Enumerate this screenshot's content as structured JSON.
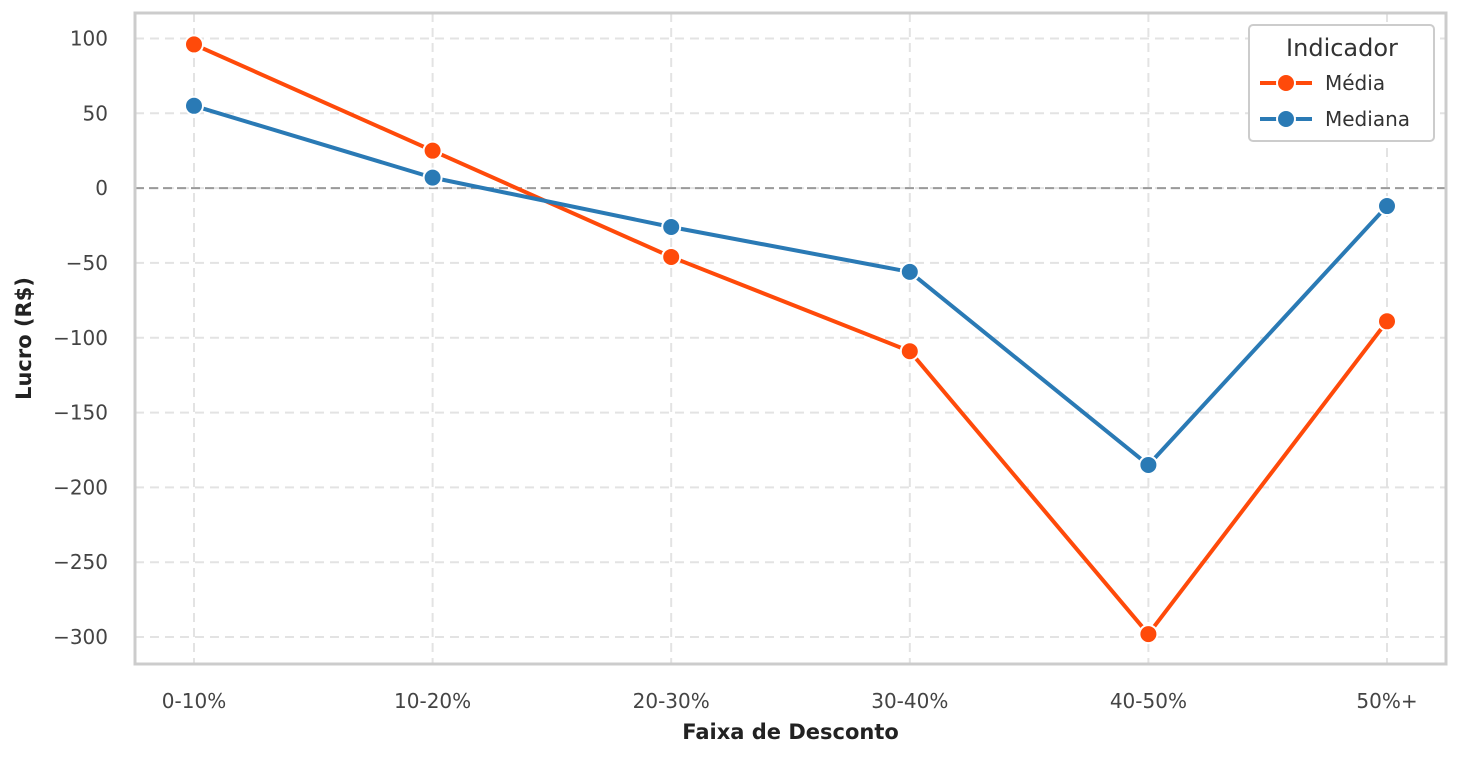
{
  "chart_data": {
    "type": "line",
    "xlabel": "Faixa de Desconto",
    "ylabel": "Lucro (R$)",
    "categories": [
      "0-10%",
      "10-20%",
      "20-30%",
      "30-40%",
      "40-50%",
      "50%+"
    ],
    "ylim": [
      -318,
      117
    ],
    "yticks": [
      100,
      50,
      0,
      -50,
      -100,
      -150,
      -200,
      -250,
      -300
    ],
    "ytick_labels": [
      "100",
      "50",
      "0",
      "−50",
      "−100",
      "−150",
      "−200",
      "−250",
      "−300"
    ],
    "reference_line": 0,
    "grid": true,
    "legend": {
      "title": "Indicador",
      "placement": "top-right"
    },
    "series": [
      {
        "name": "Média",
        "color": "#ff4a0a",
        "values": [
          96,
          25,
          -46,
          -109,
          -298,
          -89
        ]
      },
      {
        "name": "Mediana",
        "color": "#2a7ab5",
        "values": [
          55,
          7,
          -26,
          -56,
          -185,
          -12
        ]
      }
    ]
  }
}
